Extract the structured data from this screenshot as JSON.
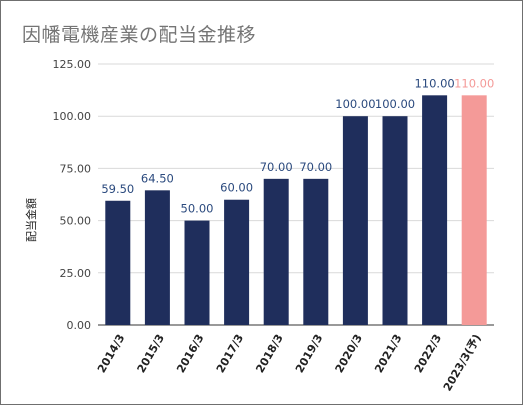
{
  "chart_data": {
    "type": "bar",
    "title": "因幡電機産業の配当金推移",
    "ylabel": "配当金額",
    "xlabel": "",
    "ylim": [
      0,
      125
    ],
    "yticks": [
      "0.00",
      "25.00",
      "50.00",
      "75.00",
      "100.00",
      "125.00"
    ],
    "grid": true,
    "legend": "none",
    "categories": [
      "2014/3",
      "2015/3",
      "2016/3",
      "2017/3",
      "2018/3",
      "2019/3",
      "2020/3",
      "2021/3",
      "2022/3",
      "2023/3(予)"
    ],
    "values": [
      59.5,
      64.5,
      50.0,
      60.0,
      70.0,
      70.0,
      100.0,
      100.0,
      110.0,
      110.0
    ],
    "data_labels": [
      "59.50",
      "64.50",
      "50.00",
      "60.00",
      "70.00",
      "70.00",
      "100.00",
      "100.00",
      "110.00",
      "110.00"
    ],
    "forecast_index": 9,
    "colors": {
      "actual": "#1f2e5c",
      "forecast": "#f49a98",
      "actual_label": "#2b4a7e",
      "forecast_label": "#f49a98",
      "grid": "#d9d9d9"
    }
  }
}
